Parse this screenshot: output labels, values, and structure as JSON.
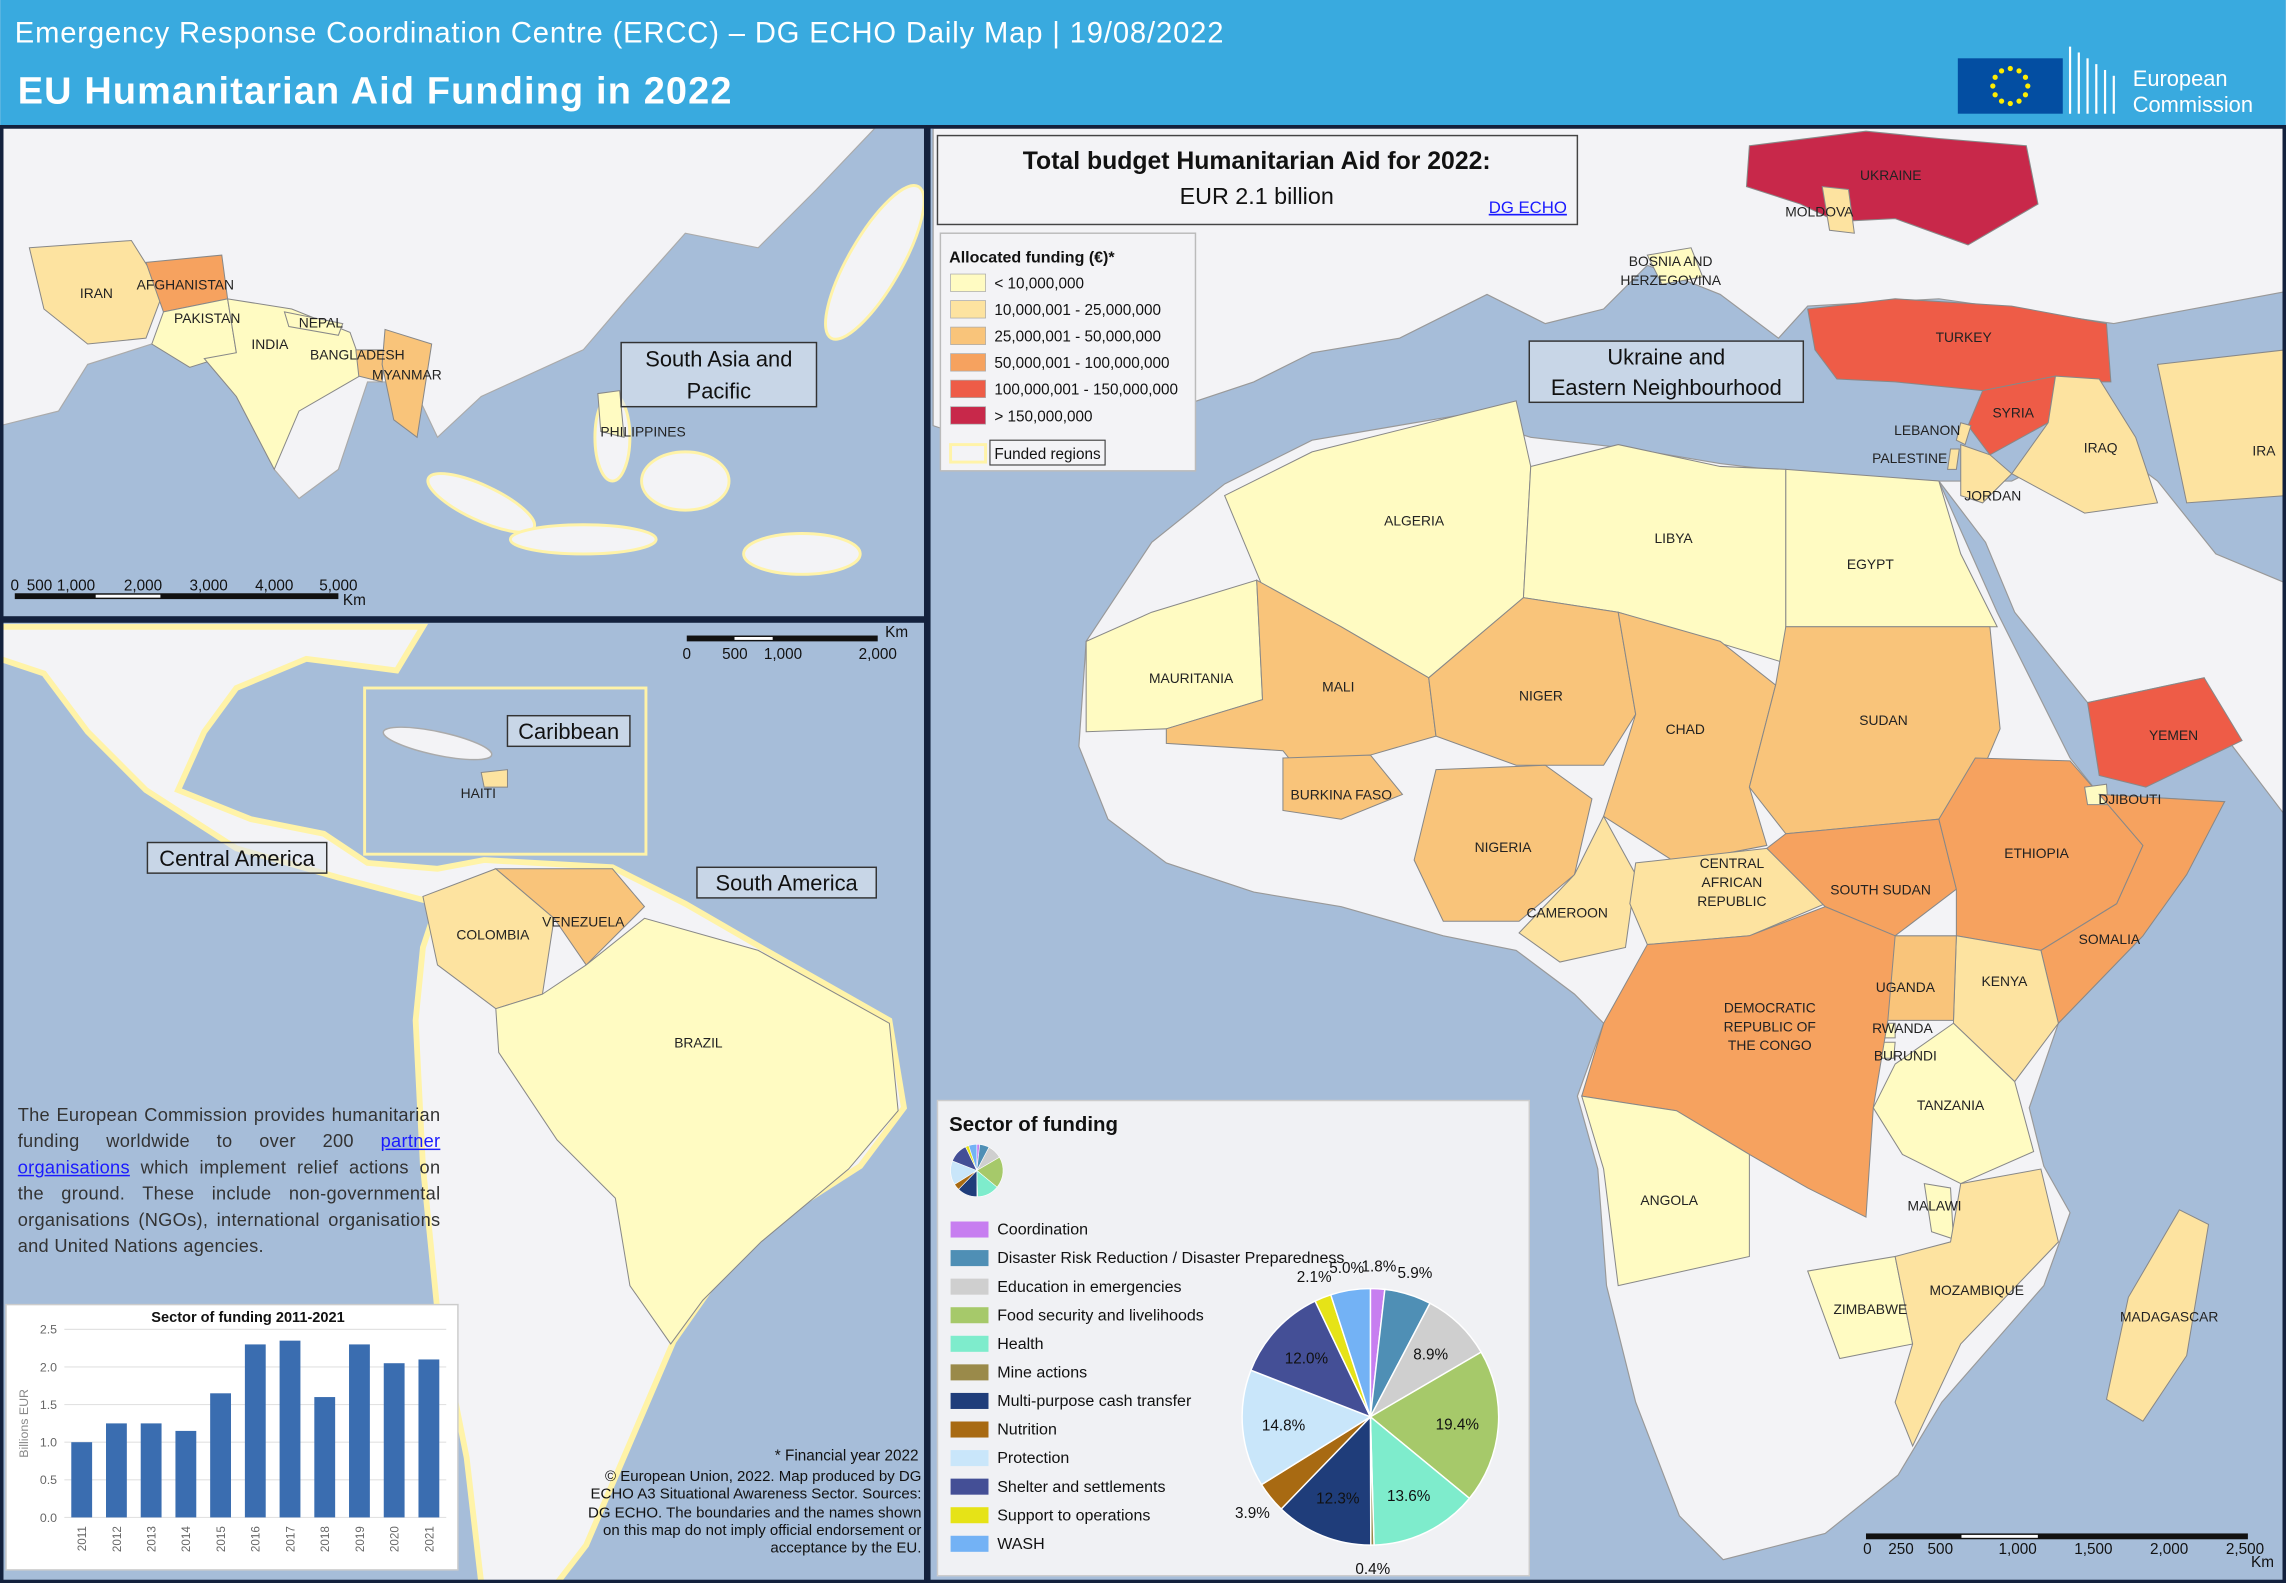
{
  "header": {
    "subtitle": "Emergency Response Coordination Centre (ERCC) – DG ECHO Daily Map | 19/08/2022",
    "title": "EU Humanitarian Aid Funding in 2022",
    "logo": [
      "European",
      "Commission"
    ]
  },
  "budget": {
    "title": "Total budget Humanitarian  Aid for 2022:",
    "amount": "EUR 2.1 billion",
    "link": "DG ECHO"
  },
  "funding_legend": {
    "title": "Allocated funding (€)*",
    "classes": [
      {
        "label": "< 10,000,000",
        "color": "#fffbc2"
      },
      {
        "label": "10,000,001 - 25,000,000",
        "color": "#fde3a0"
      },
      {
        "label": "25,000,001 - 50,000,000",
        "color": "#f9c47a"
      },
      {
        "label": "50,000,001 - 100,000,000",
        "color": "#f6a25f"
      },
      {
        "label": "100,000,001 - 150,000,000",
        "color": "#ee5c47"
      },
      {
        "label": "> 150,000,000",
        "color": "#c8284a"
      }
    ],
    "funded": "Funded regions"
  },
  "regions": {
    "south_asia": [
      "South Asia and",
      "Pacific"
    ],
    "caribbean": [
      "Caribbean"
    ],
    "central_america": [
      "Central America"
    ],
    "south_america": [
      "South America"
    ],
    "eastern": [
      "Ukraine and",
      "Eastern Neighbourhood"
    ]
  },
  "asia_countries": [
    {
      "label": [
        "IRAN"
      ],
      "color": "#fde3a0"
    },
    {
      "label": [
        "AFGHANISTAN"
      ],
      "color": "#f6a25f"
    },
    {
      "label": [
        "PAKISTAN"
      ],
      "color": "#fffbc2"
    },
    {
      "label": [
        "INDIA"
      ],
      "color": "#fffbc2"
    },
    {
      "label": [
        "NEPAL"
      ],
      "color": "#fffbc2"
    },
    {
      "label": [
        "BANGLADESH"
      ],
      "color": "#f9c47a"
    },
    {
      "label": [
        "MYANMAR"
      ],
      "color": "#f9c47a"
    },
    {
      "label": [
        "PHILIPPINES"
      ],
      "color": "#fffbc2"
    }
  ],
  "america_countries": [
    {
      "label": [
        "COLOMBIA"
      ],
      "color": "#fde3a0"
    },
    {
      "label": [
        "VENEZUELA"
      ],
      "color": "#f9c47a"
    },
    {
      "label": [
        "HAITI"
      ],
      "color": "#fde3a0"
    },
    {
      "label": [
        "BRAZIL"
      ],
      "color": "#fffbc2"
    }
  ],
  "africa_countries": [
    {
      "label": [
        "UKRAINE"
      ],
      "color": "#c8284a"
    },
    {
      "label": [
        "MOLDOVA"
      ],
      "color": "#fde3a0"
    },
    {
      "label": [
        "BOSNIA AND",
        "HERZEGOVINA"
      ],
      "color": "#fffbc2"
    },
    {
      "label": [
        "TURKEY"
      ],
      "color": "#ee5c47"
    },
    {
      "label": [
        "SYRIA"
      ],
      "color": "#ee5c47"
    },
    {
      "label": [
        "LEBANON"
      ],
      "color": "#fde3a0"
    },
    {
      "label": [
        "PALESTINE"
      ],
      "color": "#fde3a0"
    },
    {
      "label": [
        "JORDAN"
      ],
      "color": "#fde3a0"
    },
    {
      "label": [
        "IRAQ"
      ],
      "color": "#fde3a0"
    },
    {
      "label": [
        "ALGERIA"
      ],
      "color": "#fffbc2"
    },
    {
      "label": [
        "LIBYA"
      ],
      "color": "#fffbc2"
    },
    {
      "label": [
        "EGYPT"
      ],
      "color": "#fffbc2"
    },
    {
      "label": [
        "MAURITANIA"
      ],
      "color": "#fffbc2"
    },
    {
      "label": [
        "MALI"
      ],
      "color": "#f9c47a"
    },
    {
      "label": [
        "NIGER"
      ],
      "color": "#f9c47a"
    },
    {
      "label": [
        "CHAD"
      ],
      "color": "#f9c47a"
    },
    {
      "label": [
        "SUDAN"
      ],
      "color": "#f9c47a"
    },
    {
      "label": [
        "BURKINA FASO"
      ],
      "color": "#f9c47a"
    },
    {
      "label": [
        "NIGERIA"
      ],
      "color": "#f9c47a"
    },
    {
      "label": [
        "CAMEROON"
      ],
      "color": "#fde3a0"
    },
    {
      "label": [
        "CENTRAL",
        "AFRICAN",
        "REPUBLIC"
      ],
      "color": "#fde3a0"
    },
    {
      "label": [
        "SOUTH SUDAN"
      ],
      "color": "#f6a25f"
    },
    {
      "label": [
        "ETHIOPIA"
      ],
      "color": "#f6a25f"
    },
    {
      "label": [
        "YEMEN"
      ],
      "color": "#ee5c47"
    },
    {
      "label": [
        "DJIBOUTI"
      ],
      "color": "#fffbc2"
    },
    {
      "label": [
        "SOMALIA"
      ],
      "color": "#f6a25f"
    },
    {
      "label": [
        "KENYA"
      ],
      "color": "#fde3a0"
    },
    {
      "label": [
        "UGANDA"
      ],
      "color": "#f9c47a"
    },
    {
      "label": [
        "RWANDA"
      ],
      "color": "#fffbc2"
    },
    {
      "label": [
        "BURUNDI"
      ],
      "color": "#fffbc2"
    },
    {
      "label": [
        "DEMOCRATIC",
        "REPUBLIC OF",
        "THE CONGO"
      ],
      "color": "#f6a25f"
    },
    {
      "label": [
        "TANZANIA"
      ],
      "color": "#fffbc2"
    },
    {
      "label": [
        "ANGOLA"
      ],
      "color": "#fffbc2"
    },
    {
      "label": [
        "MALAWI"
      ],
      "color": "#fffbc2"
    },
    {
      "label": [
        "ZIMBABWE"
      ],
      "color": "#fffbc2"
    },
    {
      "label": [
        "MOZAMBIQUE"
      ],
      "color": "#fde3a0"
    },
    {
      "label": [
        "MADAGASCAR"
      ],
      "color": "#fde3a0"
    },
    {
      "label": [
        "IRA"
      ],
      "color": "#fde3a0"
    }
  ],
  "scalebars": {
    "asia": [
      "0",
      "500",
      "1,000",
      "2,000",
      "3,000",
      "4,000",
      "5,000",
      "Km"
    ],
    "america": [
      "0",
      "500",
      "1,000",
      "2,000",
      "Km"
    ],
    "africa": [
      "0",
      "250",
      "500",
      "1,000",
      "1,500",
      "2,000",
      "2,500",
      "Km"
    ]
  },
  "description": {
    "before": "The European Commission provides humanitarian funding worldwide to over 200 ",
    "link": "partner organisations",
    "after": " which implement relief actions on the ground. These include non-governmental organisations (NGOs), international organisations and United Nations agencies."
  },
  "notes": {
    "financial": "* Financial year 2022",
    "credits": "© European Union, 2022. Map produced by DG ECHO A3 Situational Awareness Sector. Sources: DG ECHO. The boundaries and the names shown on this map do not imply official endorsement or acceptance by the EU."
  },
  "chart_data": [
    {
      "type": "pie",
      "title": "Sector of funding",
      "categories": [
        "Coordination",
        "Disaster Risk Reduction / Disaster Preparedness",
        "Education in emergencies",
        "Food security and livelihoods",
        "Health",
        "Mine actions",
        "Multi-purpose cash transfer",
        "Nutrition",
        "Protection",
        "Shelter and settlements",
        "Support to operations",
        "WASH"
      ],
      "values": [
        1.8,
        5.9,
        8.9,
        19.4,
        13.6,
        0.4,
        12.3,
        3.9,
        14.8,
        12.0,
        2.1,
        5.0
      ],
      "value_labels": [
        "1.8%",
        "5.9%",
        "8.9%",
        "19.4%",
        "13.6%",
        "0.4%",
        "12.3%",
        "3.9%",
        "14.8%",
        "12.0%",
        "2.1%",
        "5.0%"
      ],
      "colors": [
        "#c77ef0",
        "#4f8fb5",
        "#cfcfcf",
        "#a6c96a",
        "#7eeccc",
        "#9a8a4a",
        "#1f3d7a",
        "#a86a12",
        "#c9e6fa",
        "#444f96",
        "#e6e317",
        "#73b2f5"
      ]
    },
    {
      "type": "bar",
      "title": "Sector of funding 2011-2021",
      "y_label": "Billions EUR",
      "categories": [
        "2011",
        "2012",
        "2013",
        "2014",
        "2015",
        "2016",
        "2017",
        "2018",
        "2019",
        "2020",
        "2021"
      ],
      "values": [
        1.0,
        1.25,
        1.25,
        1.15,
        1.65,
        2.3,
        2.35,
        1.6,
        2.3,
        2.05,
        2.1
      ],
      "color": "#3a6db0",
      "ylim": [
        0,
        2.5
      ],
      "yticks": [
        {
          "value": 0,
          "label": "0.0"
        },
        0.5,
        {
          "value": 1,
          "label": "1.0"
        },
        1.5,
        {
          "value": 2,
          "label": "2.0"
        },
        2.5
      ],
      "grid": true
    }
  ]
}
